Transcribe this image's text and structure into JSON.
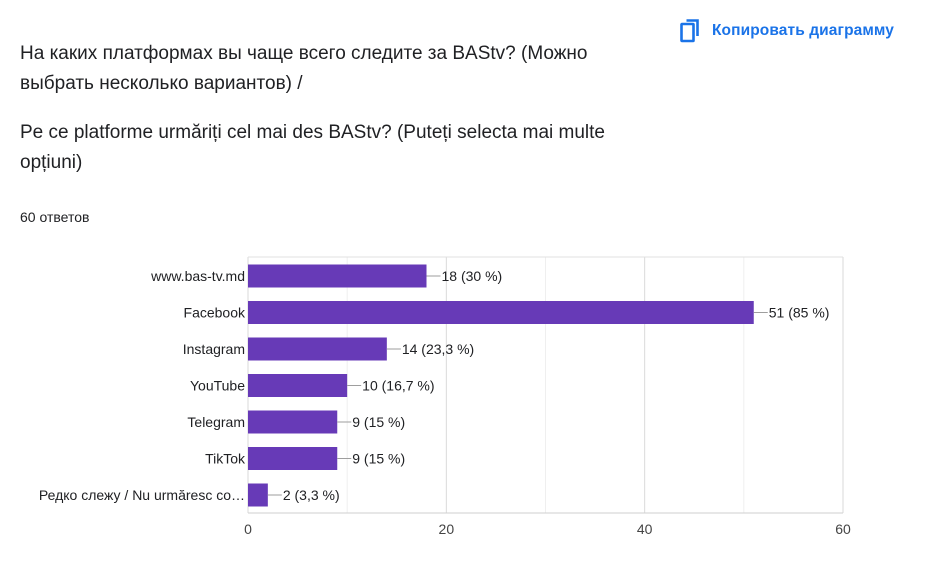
{
  "header": {
    "question_ru": "На каких платформах вы чаще всего следите за BAStv? (Можно выбрать несколько вариантов) /",
    "question_ro": "Pe ce platforme urmăriți cel mai des BAStv? (Puteți selecta mai multe opțiuni)",
    "response_count": "60 ответов",
    "copy_button_label": "Копировать диаграмму",
    "copy_icon": "copy-icon"
  },
  "colors": {
    "bar": "#673ab7",
    "accent": "#1a73e8",
    "grid": "#e6e6e6",
    "text": "#202124"
  },
  "chart_data": {
    "type": "bar",
    "orientation": "horizontal",
    "categories": [
      "www.bas-tv.md",
      "Facebook",
      "Instagram",
      "YouTube",
      "Telegram",
      "TikTok",
      "Редко слежу / Nu urmăresc co…"
    ],
    "values": [
      18,
      51,
      14,
      10,
      9,
      9,
      2
    ],
    "data_labels": [
      "18 (30 %)",
      "51 (85 %)",
      "14 (23,3 %)",
      "10 (16,7 %)",
      "9 (15 %)",
      "9 (15 %)",
      "2 (3,3 %)"
    ],
    "xlim": [
      0,
      60
    ],
    "xticks": [
      0,
      20,
      40,
      60
    ],
    "xtick_labels": [
      "0",
      "20",
      "40",
      "60"
    ],
    "grid": true,
    "legend": "none"
  }
}
